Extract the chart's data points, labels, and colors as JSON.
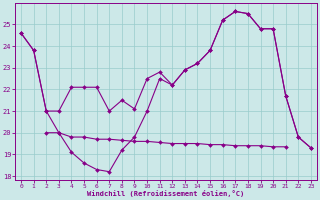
{
  "x": [
    0,
    1,
    2,
    3,
    4,
    5,
    6,
    7,
    8,
    9,
    10,
    11,
    12,
    13,
    14,
    15,
    16,
    17,
    18,
    19,
    20,
    21,
    22,
    23
  ],
  "line1": [
    24.6,
    23.8,
    21.0,
    21.0,
    22.1,
    22.1,
    22.1,
    21.0,
    21.5,
    21.1,
    22.5,
    22.8,
    22.2,
    22.9,
    23.2,
    23.8,
    25.2,
    25.6,
    25.5,
    24.8,
    24.8,
    21.7,
    19.8,
    19.3
  ],
  "line2": [
    24.6,
    23.8,
    21.0,
    20.0,
    19.1,
    18.6,
    18.3,
    18.2,
    19.2,
    19.8,
    21.0,
    22.5,
    22.2,
    22.9,
    23.2,
    23.8,
    25.2,
    25.6,
    25.5,
    24.8,
    24.8,
    21.7,
    19.8,
    19.3
  ],
  "line3_x": [
    2,
    3,
    4,
    5,
    6,
    7,
    8,
    9,
    10,
    11,
    12,
    13,
    14,
    15,
    16,
    17,
    18,
    19,
    20,
    21
  ],
  "line3_y": [
    20.0,
    20.0,
    19.8,
    19.8,
    19.7,
    19.7,
    19.65,
    19.6,
    19.6,
    19.55,
    19.5,
    19.5,
    19.5,
    19.45,
    19.45,
    19.4,
    19.4,
    19.4,
    19.35,
    19.35
  ],
  "color": "#880088",
  "bg_color": "#cce8e8",
  "grid_color": "#99cccc",
  "xlabel": "Windchill (Refroidissement éolien,°C)",
  "xlim": [
    -0.5,
    23.5
  ],
  "ylim": [
    17.8,
    26.0
  ],
  "yticks": [
    18,
    19,
    20,
    21,
    22,
    23,
    24,
    25
  ],
  "xticks": [
    0,
    1,
    2,
    3,
    4,
    5,
    6,
    7,
    8,
    9,
    10,
    11,
    12,
    13,
    14,
    15,
    16,
    17,
    18,
    19,
    20,
    21,
    22,
    23
  ]
}
